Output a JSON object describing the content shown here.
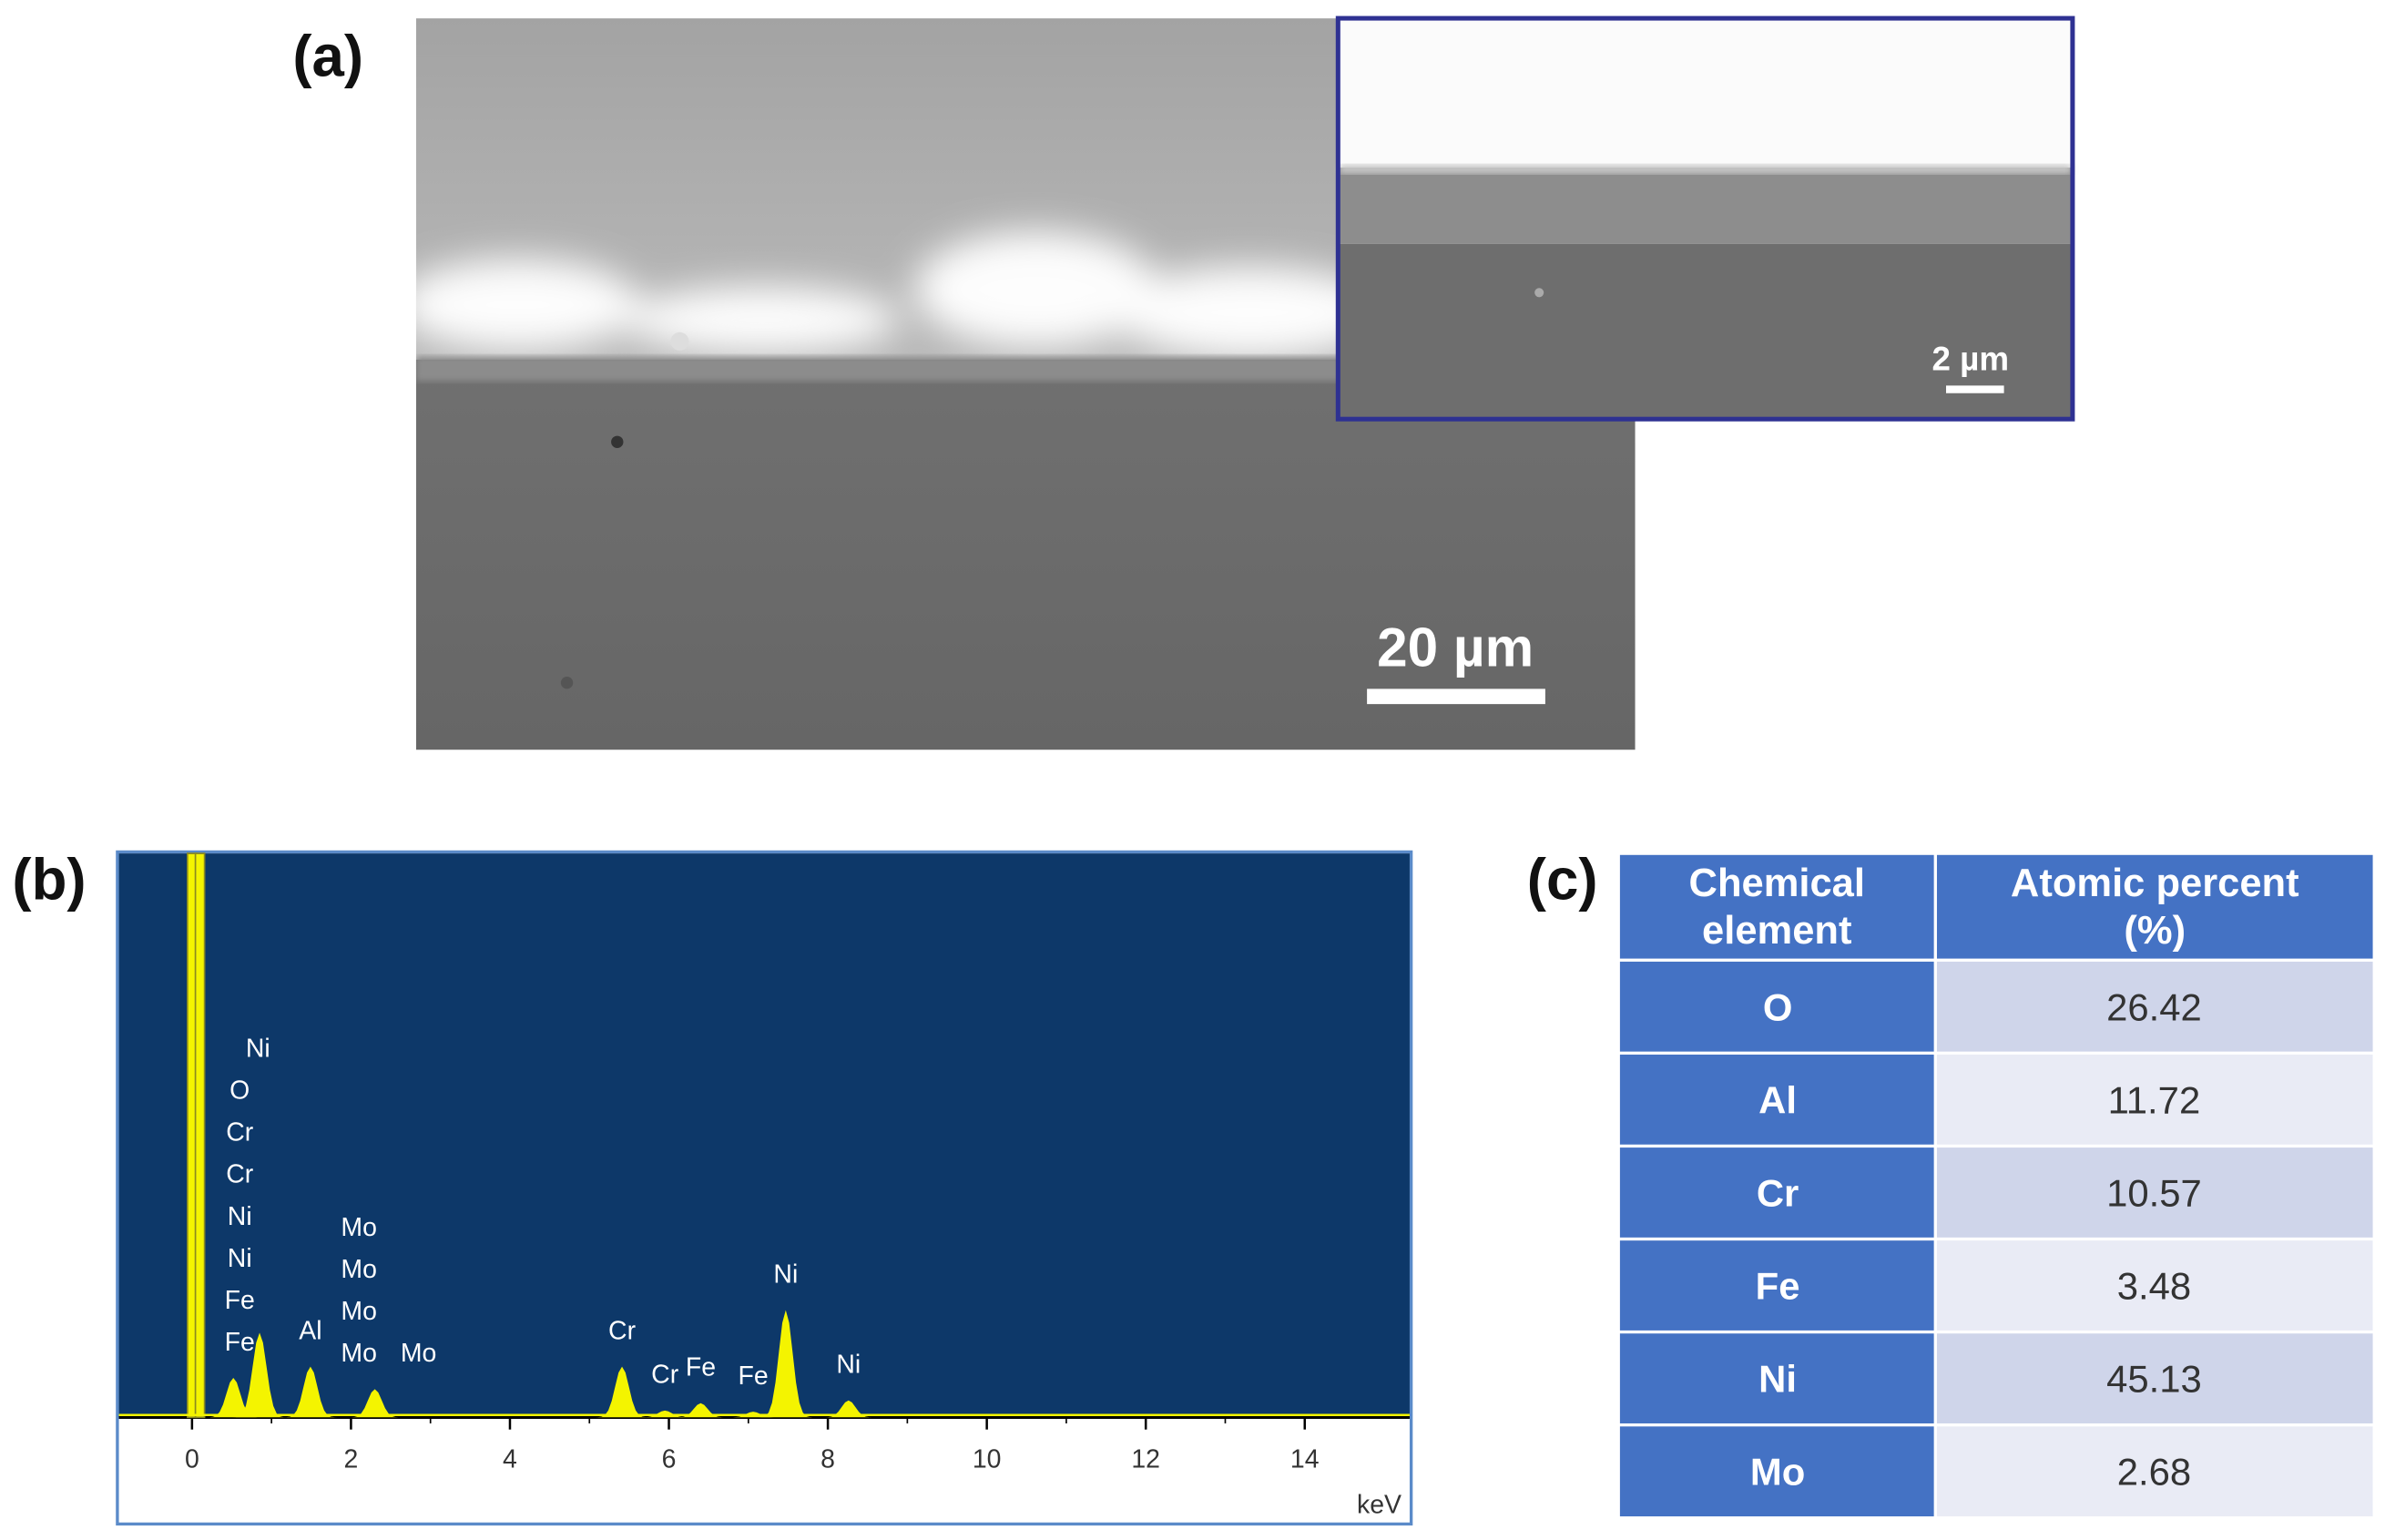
{
  "panel_a": {
    "label": "(a)",
    "scale_bar": "20 µm",
    "inset_scale_bar": "2 µm"
  },
  "panel_b": {
    "label": "(b)",
    "spectrum": {
      "xlim": [
        -0.92,
        15.32
      ],
      "xticks": [
        0,
        2,
        4,
        6,
        8,
        10,
        12,
        14
      ],
      "x_unit": "keV",
      "peaks": [
        {
          "x": 0,
          "height": 1.0
        },
        {
          "x": 0.1,
          "height": 1.0
        },
        {
          "x": 0.52,
          "height": 0.07
        },
        {
          "x": 0.85,
          "height": 0.15
        },
        {
          "x": 1.49,
          "height": 0.09
        },
        {
          "x": 2.3,
          "height": 0.05
        },
        {
          "x": 5.41,
          "height": 0.09
        },
        {
          "x": 5.95,
          "height": 0.012
        },
        {
          "x": 6.4,
          "height": 0.025
        },
        {
          "x": 7.06,
          "height": 0.01
        },
        {
          "x": 7.47,
          "height": 0.19
        },
        {
          "x": 8.26,
          "height": 0.03
        }
      ],
      "labels": [
        {
          "x": 0.6,
          "texts": [
            "Ni",
            "O",
            "Cr",
            "Cr",
            "Ni",
            "Ni",
            "Fe",
            "Fe"
          ]
        },
        {
          "x": 1.49,
          "texts": [
            "Al"
          ]
        },
        {
          "x": 2.1,
          "texts": [
            "Mo",
            "Mo",
            "Mo",
            "Mo"
          ]
        },
        {
          "x": 2.85,
          "texts": [
            "Mo"
          ]
        },
        {
          "x": 5.41,
          "texts": [
            "Cr"
          ]
        },
        {
          "x": 5.95,
          "texts": [
            "Cr"
          ]
        },
        {
          "x": 6.4,
          "texts": [
            "Fe"
          ]
        },
        {
          "x": 7.06,
          "texts": [
            "Fe"
          ]
        },
        {
          "x": 7.47,
          "texts": [
            "Ni"
          ]
        },
        {
          "x": 8.26,
          "texts": [
            "Ni"
          ]
        }
      ]
    }
  },
  "panel_c": {
    "label": "(c)",
    "table": {
      "header": [
        [
          "Chemical",
          "element"
        ],
        [
          "Atomic percent",
          "(%)"
        ]
      ],
      "rows": [
        [
          "O",
          "26.42"
        ],
        [
          "Al",
          "11.72"
        ],
        [
          "Cr",
          "10.57"
        ],
        [
          "Fe",
          "3.48"
        ],
        [
          "Ni",
          "45.13"
        ],
        [
          "Mo",
          "2.68"
        ]
      ]
    }
  }
}
